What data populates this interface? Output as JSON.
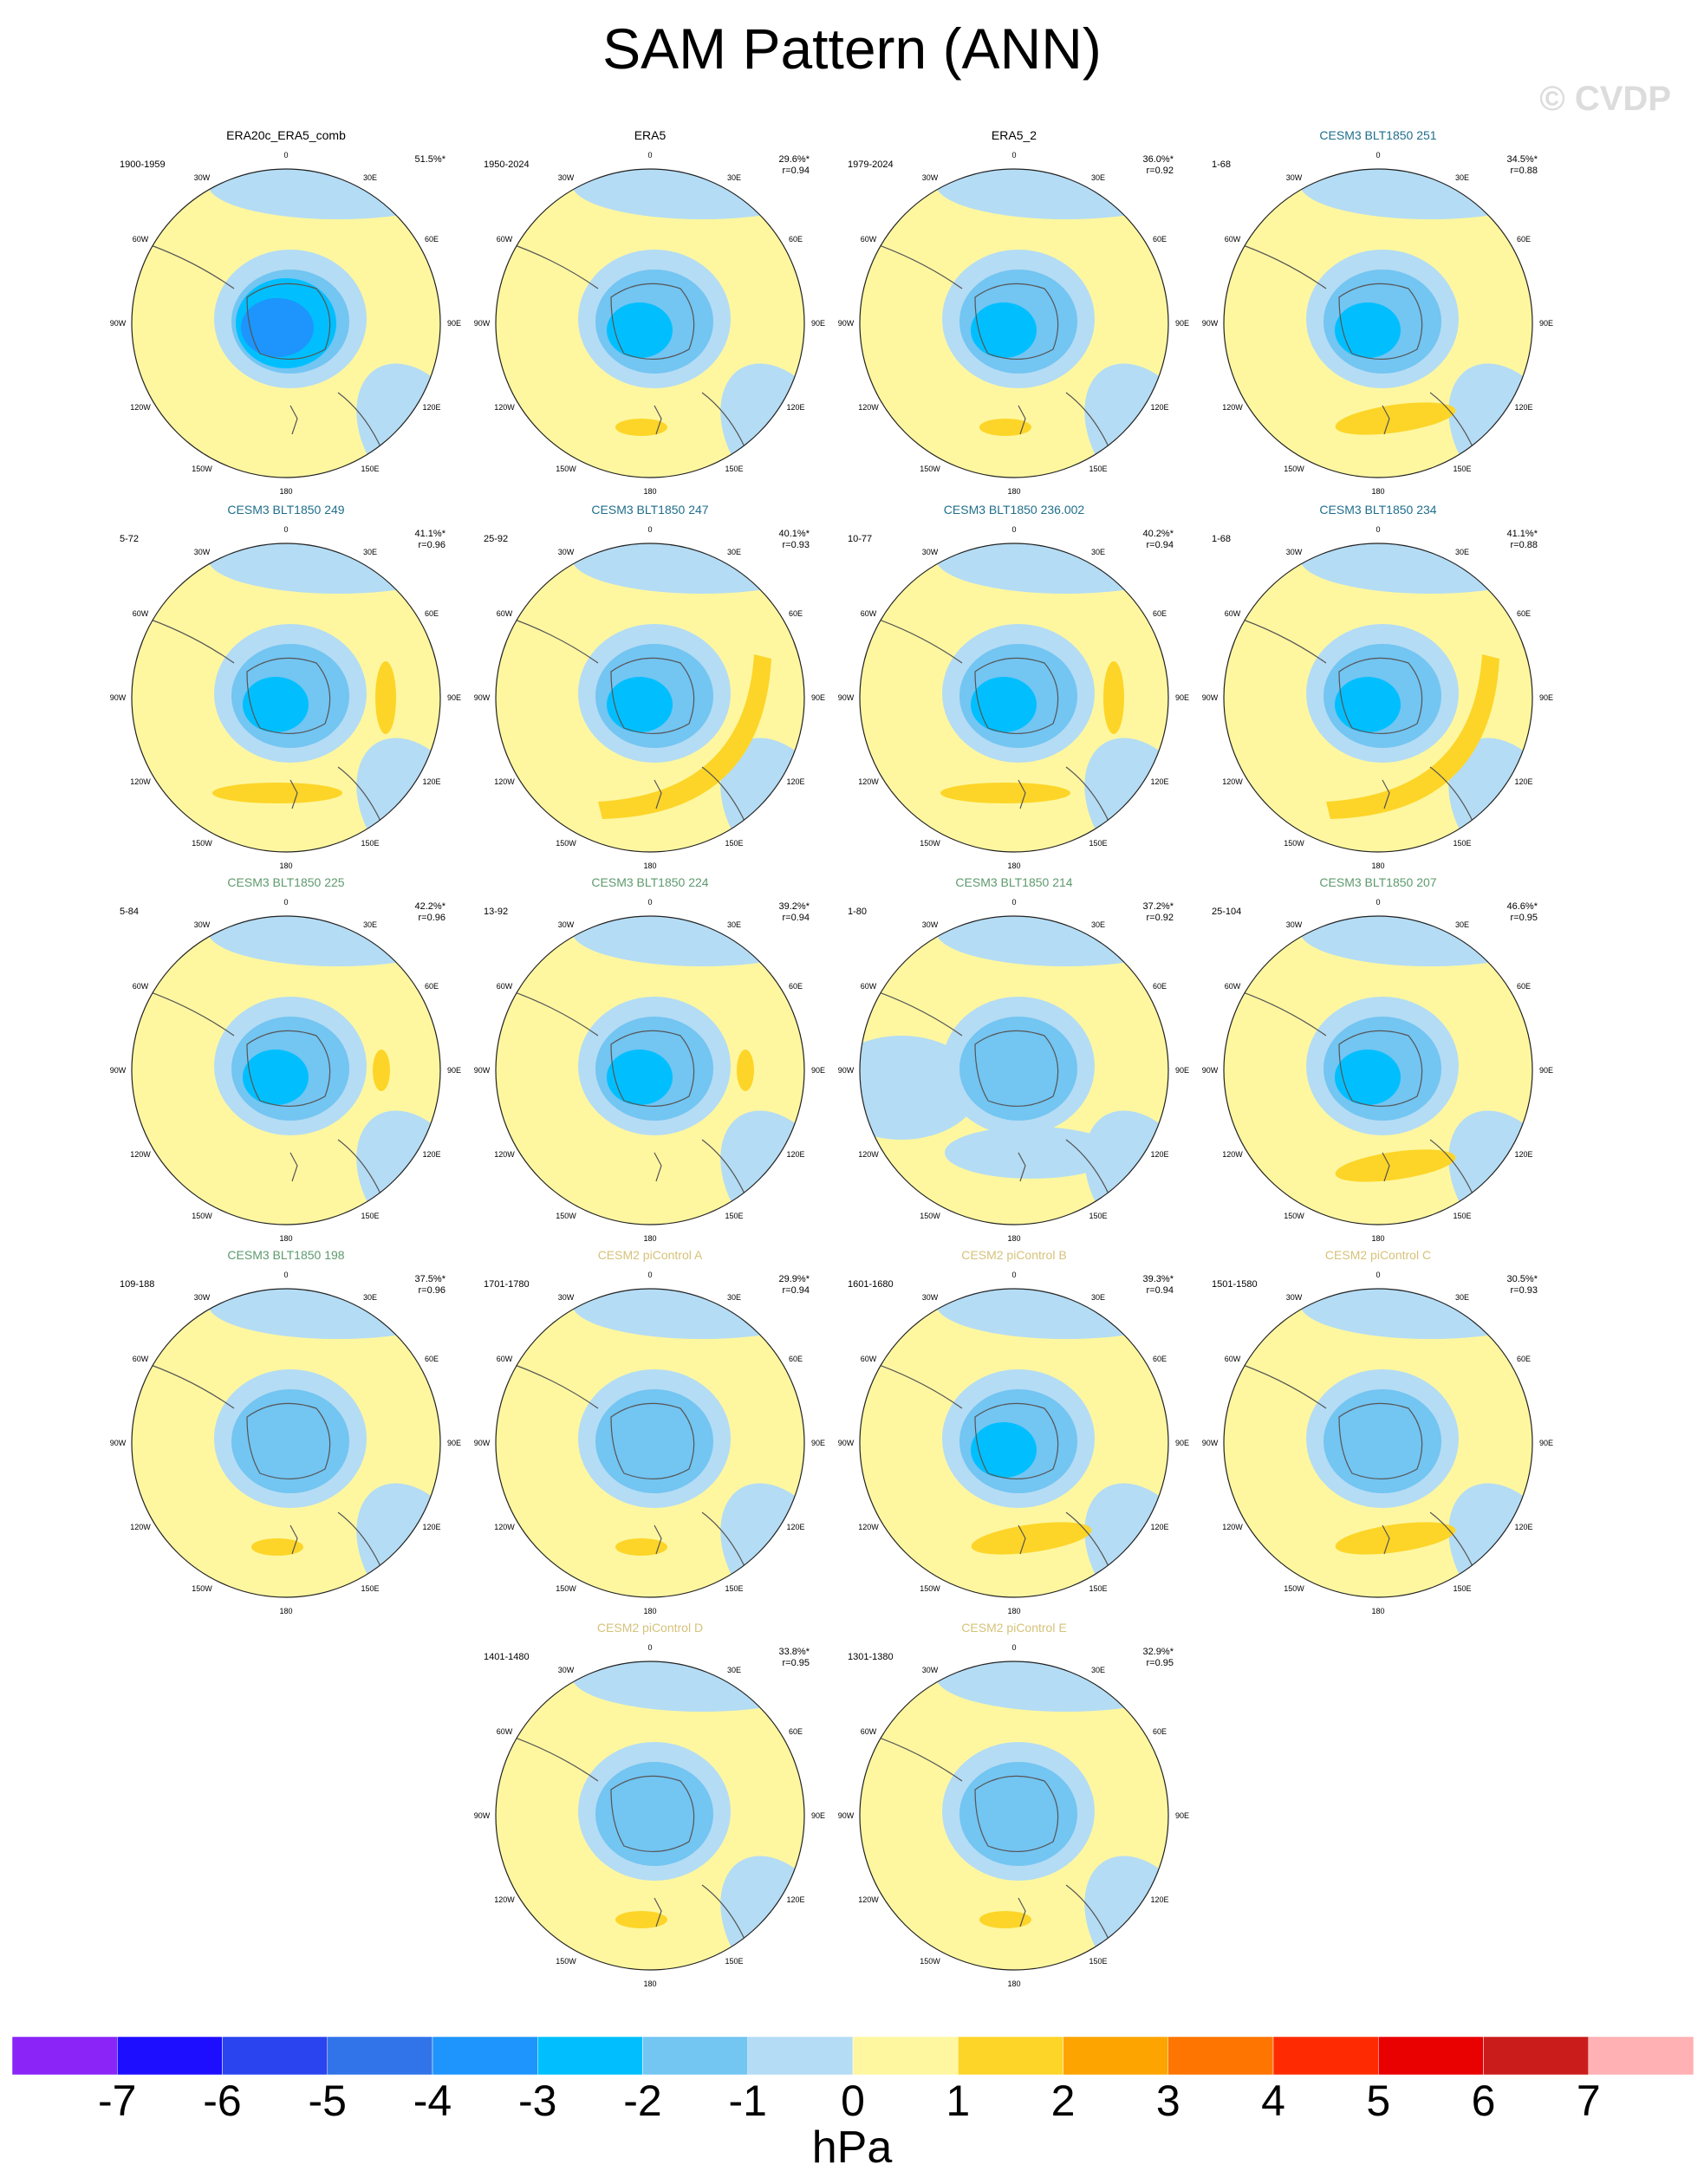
{
  "title": "SAM Pattern (ANN)",
  "watermark": "© CVDP",
  "lon_labels": {
    "top": "0",
    "bottom": "180",
    "l1": "30W",
    "r1": "30E",
    "l2": "60W",
    "r2": "60E",
    "l3": "90W",
    "r3": "90E",
    "l4": "120W",
    "r4": "120E",
    "l5": "150W",
    "r5": "150E"
  },
  "colors": {
    "obs_title": "#000000",
    "cesm3_a": "#1f6e8c",
    "cesm3_b": "#5e9a6e",
    "cesm2": "#d6c27a",
    "ocean_neg1": "#b4dcf4",
    "neg2": "#73c5f2",
    "neg3": "#01bffe",
    "neg4": "#1d95fd",
    "pos0": "#fff7a0",
    "pos1": "#fdd528"
  },
  "panels": [
    {
      "title": "ERA20c_ERA5_comb",
      "period": "1900-1959",
      "pct": "51.5%*",
      "r": "",
      "group": "obs",
      "depth": 5,
      "yellow": "none"
    },
    {
      "title": "ERA5",
      "period": "1950-2024",
      "pct": "29.6%*",
      "r": "r=0.94",
      "group": "obs",
      "depth": 3,
      "yellow": "small"
    },
    {
      "title": "ERA5_2",
      "period": "1979-2024",
      "pct": "36.0%*",
      "r": "r=0.92",
      "group": "obs",
      "depth": 3,
      "yellow": "small"
    },
    {
      "title": "CESM3 BLT1850 251",
      "period": "1-68",
      "pct": "34.5%*",
      "r": "r=0.88",
      "group": "cesm3_a",
      "depth": 3,
      "yellow": "arc"
    },
    {
      "title": "CESM3 BLT1850 249",
      "period": "5-72",
      "pct": "41.1%*",
      "r": "r=0.96",
      "group": "cesm3_a",
      "depth": 3,
      "yellow": "arc2"
    },
    {
      "title": "CESM3 BLT1850 247",
      "period": "25-92",
      "pct": "40.1%*",
      "r": "r=0.93",
      "group": "cesm3_a",
      "depth": 3,
      "yellow": "bigarc"
    },
    {
      "title": "CESM3 BLT1850 236.002",
      "period": "10-77",
      "pct": "40.2%*",
      "r": "r=0.94",
      "group": "cesm3_a",
      "depth": 3,
      "yellow": "arc2"
    },
    {
      "title": "CESM3 BLT1850 234",
      "period": "1-68",
      "pct": "41.1%*",
      "r": "r=0.88",
      "group": "cesm3_a",
      "depth": 3,
      "yellow": "bigarc"
    },
    {
      "title": "CESM3 BLT1850 225",
      "period": "5-84",
      "pct": "42.2%*",
      "r": "r=0.96",
      "group": "cesm3_b",
      "depth": 3,
      "yellow": "dot"
    },
    {
      "title": "CESM3 BLT1850 224",
      "period": "13-92",
      "pct": "39.2%*",
      "r": "r=0.94",
      "group": "cesm3_b",
      "depth": 3,
      "yellow": "dot"
    },
    {
      "title": "CESM3 BLT1850 214",
      "period": "1-80",
      "pct": "37.2%*",
      "r": "r=0.92",
      "group": "cesm3_b",
      "depth": 2,
      "yellow": "none"
    },
    {
      "title": "CESM3 BLT1850 207",
      "period": "25-104",
      "pct": "46.6%*",
      "r": "r=0.95",
      "group": "cesm3_b",
      "depth": 3,
      "yellow": "arc"
    },
    {
      "title": "CESM3 BLT1850 198",
      "period": "109-188",
      "pct": "37.5%*",
      "r": "r=0.96",
      "group": "cesm3_b",
      "depth": 2,
      "yellow": "small"
    },
    {
      "title": "CESM2 piControl A",
      "period": "1701-1780",
      "pct": "29.9%*",
      "r": "r=0.94",
      "group": "cesm2",
      "depth": 2,
      "yellow": "small"
    },
    {
      "title": "CESM2 piControl B",
      "period": "1601-1680",
      "pct": "39.3%*",
      "r": "r=0.94",
      "group": "cesm2",
      "depth": 3,
      "yellow": "arc"
    },
    {
      "title": "CESM2 piControl C",
      "period": "1501-1580",
      "pct": "30.5%*",
      "r": "r=0.93",
      "group": "cesm2",
      "depth": 2,
      "yellow": "arc"
    },
    {
      "title": "CESM2 piControl D",
      "period": "1401-1480",
      "pct": "33.8%*",
      "r": "r=0.95",
      "group": "cesm2",
      "depth": 2,
      "yellow": "small"
    },
    {
      "title": "CESM2 piControl E",
      "period": "1301-1380",
      "pct": "32.9%*",
      "r": "r=0.95",
      "group": "cesm2",
      "depth": 2,
      "yellow": "small"
    }
  ],
  "colorbar": {
    "colors": [
      "#8a24f7",
      "#1e0eff",
      "#2a44ef",
      "#3174ea",
      "#1e95fd",
      "#01bffe",
      "#73c5f2",
      "#b4dcf4",
      "#fff7a0",
      "#fdd528",
      "#fda400",
      "#fe7502",
      "#fe2b02",
      "#e90000",
      "#cb1c1c",
      "#ffb1b3"
    ],
    "labels": [
      "-7",
      "-6",
      "-5",
      "-4",
      "-3",
      "-2",
      "-1",
      "0",
      "1",
      "2",
      "3",
      "4",
      "5",
      "6",
      "7"
    ],
    "units": "hPa"
  }
}
